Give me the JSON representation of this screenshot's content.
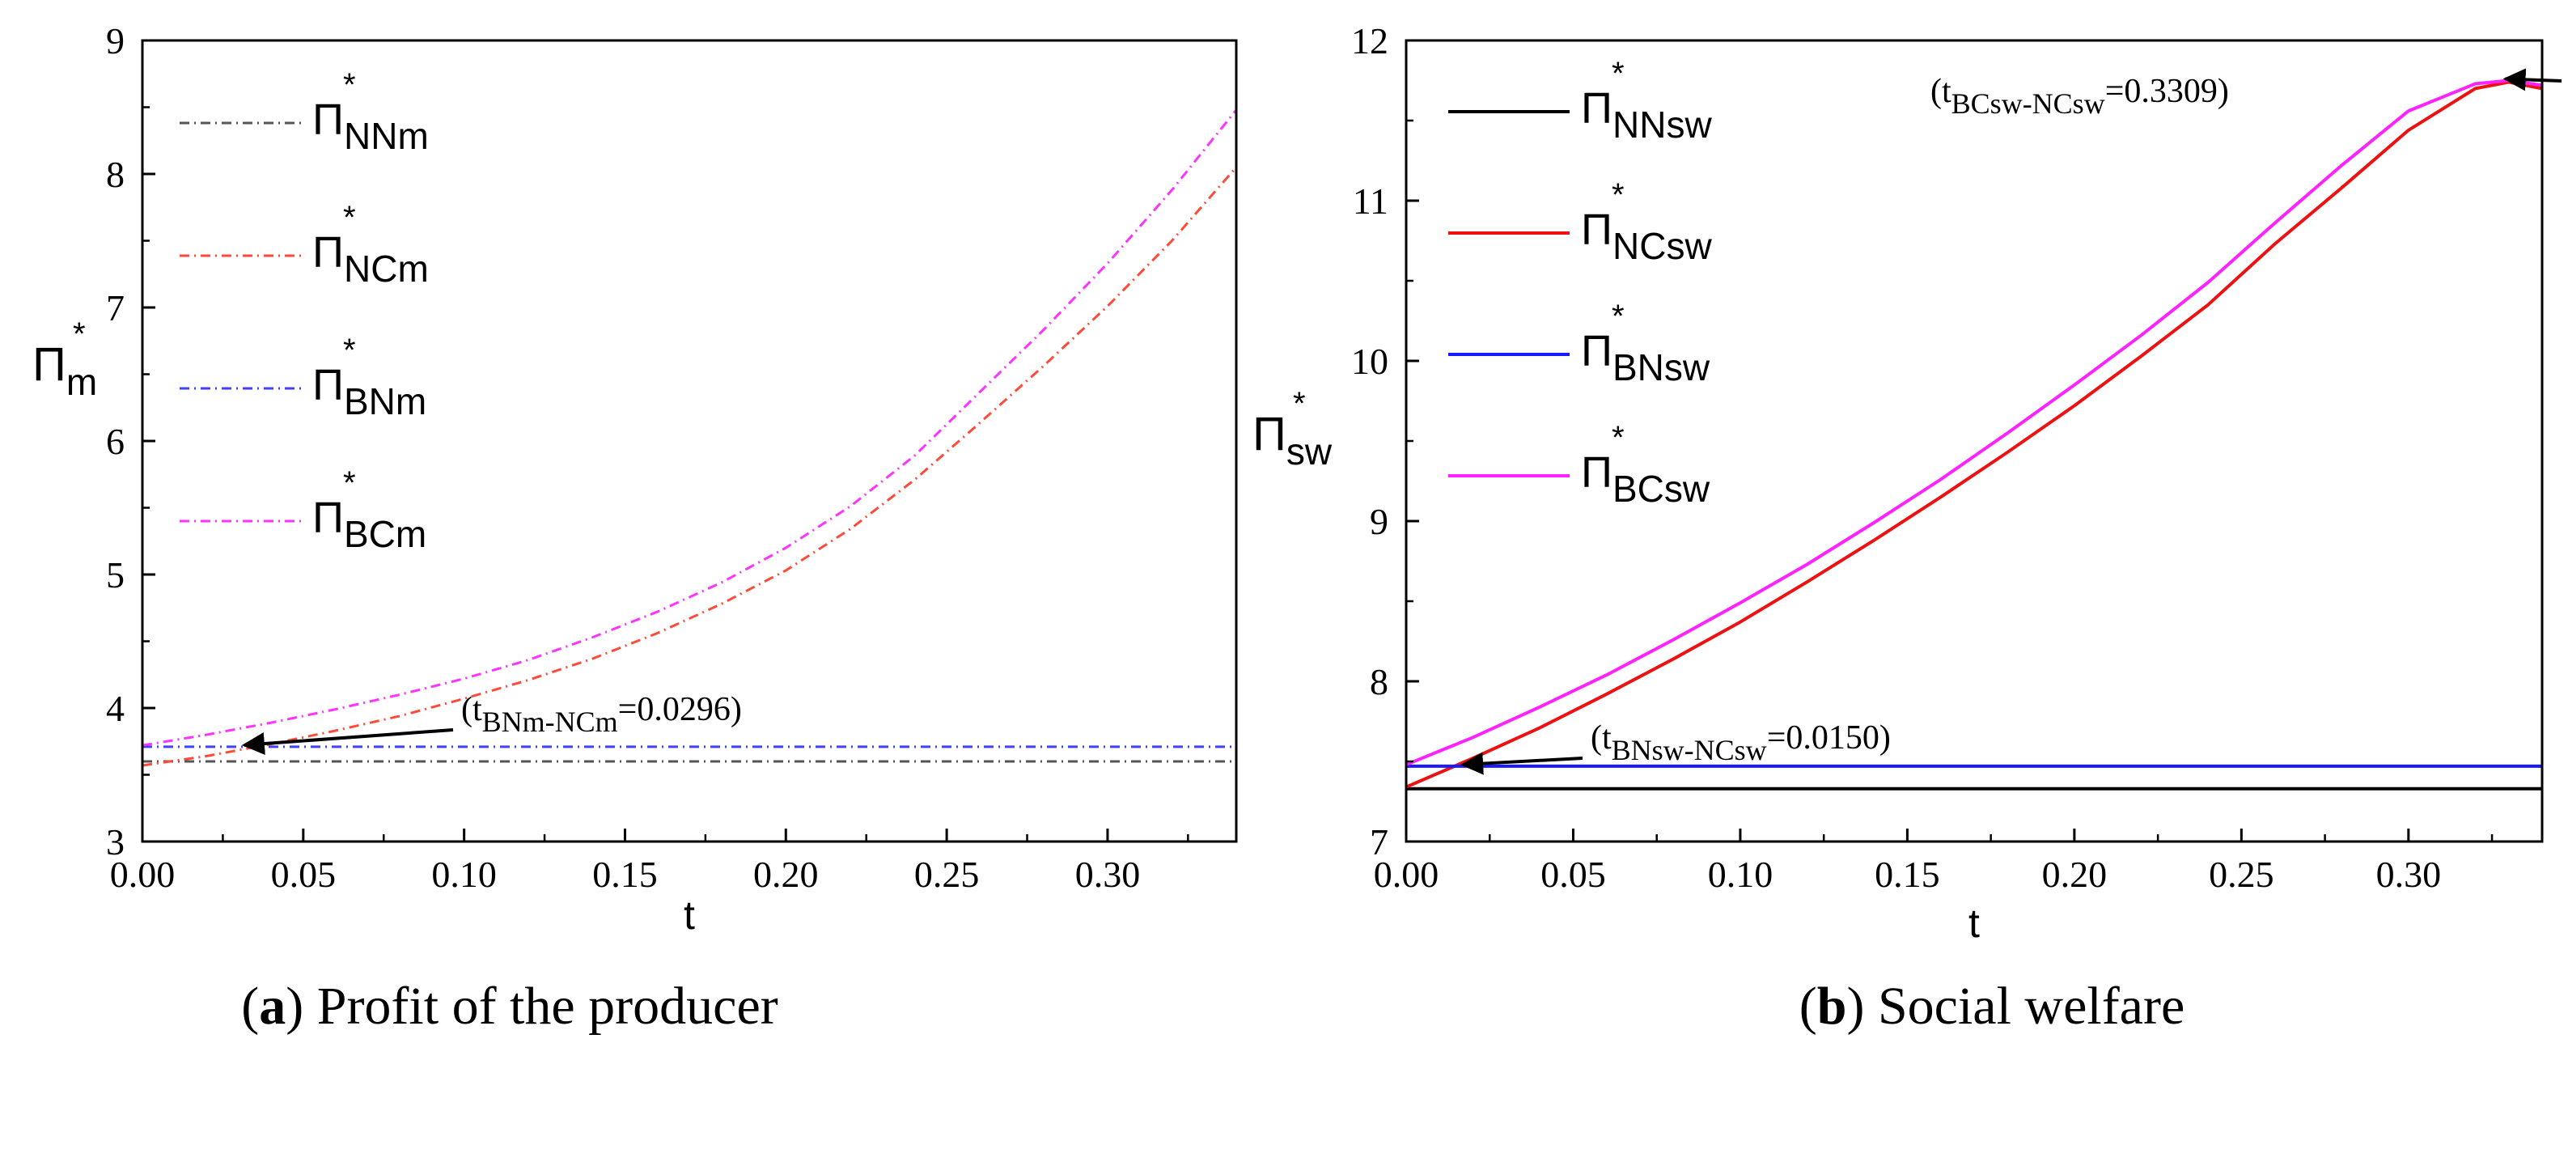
{
  "chart_data": [
    {
      "type": "line",
      "panel_id": "a",
      "xlabel": "t",
      "ylabel_base": "Π",
      "ylabel_sub": "m",
      "ylabel_sup": "*",
      "xlim": [
        0,
        0.34
      ],
      "ylim": [
        3,
        9
      ],
      "xticks": [
        "0.00",
        "0.05",
        "0.10",
        "0.15",
        "0.20",
        "0.25",
        "0.30"
      ],
      "xtick_values": [
        0,
        0.05,
        0.1,
        0.15,
        0.2,
        0.25,
        0.3
      ],
      "yticks": [
        "3",
        "4",
        "5",
        "6",
        "7",
        "8",
        "9"
      ],
      "ytick_values": [
        3,
        4,
        5,
        6,
        7,
        8,
        9
      ],
      "legend": [
        {
          "base": "Π",
          "sub": "NNm",
          "sup": "*",
          "color": "#555555",
          "dash": "dashdot"
        },
        {
          "base": "Π",
          "sub": "NCm",
          "sup": "*",
          "color": "#ff4a3a",
          "dash": "dashdot"
        },
        {
          "base": "Π",
          "sub": "BNm",
          "sup": "*",
          "color": "#4040ff",
          "dash": "dashdot"
        },
        {
          "base": "Π",
          "sub": "BCm",
          "sup": "*",
          "color": "#ff33ff",
          "dash": "dashdot"
        }
      ],
      "series": [
        {
          "name": "NNm",
          "color": "#555555",
          "dash": "dashdot",
          "x": [
            0,
            0.34
          ],
          "y": [
            3.6,
            3.6
          ]
        },
        {
          "name": "NCm",
          "color": "#ff4a3a",
          "dash": "dashdot",
          "x": [
            0,
            0.02,
            0.04,
            0.06,
            0.08,
            0.1,
            0.12,
            0.14,
            0.16,
            0.18,
            0.2,
            0.22,
            0.24,
            0.26,
            0.28,
            0.3,
            0.32,
            0.34
          ],
          "y": [
            3.57,
            3.64,
            3.73,
            3.83,
            3.94,
            4.07,
            4.21,
            4.37,
            4.56,
            4.78,
            5.03,
            5.34,
            5.71,
            6.13,
            6.56,
            7.01,
            7.5,
            8.05
          ]
        },
        {
          "name": "BNm",
          "color": "#4040ff",
          "dash": "dashdot",
          "x": [
            0,
            0.34
          ],
          "y": [
            3.71,
            3.71
          ]
        },
        {
          "name": "BCm",
          "color": "#ff33ff",
          "dash": "dashdot",
          "x": [
            0,
            0.02,
            0.04,
            0.06,
            0.08,
            0.1,
            0.12,
            0.14,
            0.16,
            0.18,
            0.2,
            0.22,
            0.24,
            0.26,
            0.28,
            0.3,
            0.32,
            0.34
          ],
          "y": [
            3.72,
            3.8,
            3.89,
            3.99,
            4.1,
            4.22,
            4.36,
            4.53,
            4.72,
            4.94,
            5.2,
            5.51,
            5.89,
            6.36,
            6.83,
            7.33,
            7.88,
            8.48
          ]
        }
      ],
      "annotation": {
        "prefix": "(t",
        "sub": "BNm-NCm",
        "suffix": "=0.0296)",
        "x": 0.0296,
        "y": 3.71
      }
    },
    {
      "type": "line",
      "panel_id": "b",
      "xlabel": "t",
      "ylabel_base": "Π",
      "ylabel_sub": "sw",
      "ylabel_sup": "*",
      "xlim": [
        0,
        0.34
      ],
      "ylim": [
        7,
        12
      ],
      "xticks": [
        "0.00",
        "0.05",
        "0.10",
        "0.15",
        "0.20",
        "0.25",
        "0.30"
      ],
      "xtick_values": [
        0,
        0.05,
        0.1,
        0.15,
        0.2,
        0.25,
        0.3
      ],
      "yticks": [
        "7",
        "8",
        "9",
        "10",
        "11",
        "12"
      ],
      "ytick_values": [
        7,
        8,
        9,
        10,
        11,
        12
      ],
      "legend": [
        {
          "base": "Π",
          "sub": "NNsw",
          "sup": "*",
          "color": "#000000",
          "dash": "solid"
        },
        {
          "base": "Π",
          "sub": "NCsw",
          "sup": "*",
          "color": "#ee1111",
          "dash": "solid"
        },
        {
          "base": "Π",
          "sub": "BNsw",
          "sup": "*",
          "color": "#1a1aff",
          "dash": "solid"
        },
        {
          "base": "Π",
          "sub": "BCsw",
          "sup": "*",
          "color": "#ff22ff",
          "dash": "solid"
        }
      ],
      "series": [
        {
          "name": "NNsw",
          "color": "#000000",
          "dash": "solid",
          "x": [
            0,
            0.34
          ],
          "y": [
            7.33,
            7.33
          ]
        },
        {
          "name": "NCsw",
          "color": "#ee1111",
          "dash": "solid",
          "x": [
            0,
            0.02,
            0.04,
            0.06,
            0.08,
            0.1,
            0.12,
            0.14,
            0.16,
            0.18,
            0.2,
            0.22,
            0.24,
            0.26,
            0.28,
            0.3,
            0.32,
            0.33,
            0.34
          ],
          "y": [
            7.34,
            7.52,
            7.71,
            7.92,
            8.14,
            8.37,
            8.62,
            8.88,
            9.15,
            9.43,
            9.72,
            10.03,
            10.35,
            10.73,
            11.08,
            11.44,
            11.7,
            11.74,
            11.7
          ]
        },
        {
          "name": "BNsw",
          "color": "#1a1aff",
          "dash": "solid",
          "x": [
            0,
            0.34
          ],
          "y": [
            7.47,
            7.47
          ]
        },
        {
          "name": "BCsw",
          "color": "#ff22ff",
          "dash": "solid",
          "x": [
            0,
            0.02,
            0.04,
            0.06,
            0.08,
            0.1,
            0.12,
            0.14,
            0.16,
            0.18,
            0.2,
            0.22,
            0.24,
            0.26,
            0.28,
            0.3,
            0.32,
            0.33,
            0.34
          ],
          "y": [
            7.48,
            7.65,
            7.84,
            8.04,
            8.26,
            8.49,
            8.73,
            8.99,
            9.26,
            9.55,
            9.85,
            10.16,
            10.49,
            10.86,
            11.22,
            11.56,
            11.73,
            11.75,
            11.72
          ]
        }
      ],
      "annotations": [
        {
          "prefix": "(t",
          "sub": "BNsw-NCsw",
          "suffix": "=0.0150)",
          "x": 0.015,
          "y": 7.47
        },
        {
          "prefix": "(t",
          "sub": "BCsw-NCsw",
          "suffix": "=0.3309)",
          "x": 0.3309,
          "y": 11.74
        }
      ]
    }
  ],
  "captions": {
    "a": {
      "letter": "a",
      "text": " Profit of the producer"
    },
    "b": {
      "letter": "b",
      "text": " Social welfare"
    }
  }
}
